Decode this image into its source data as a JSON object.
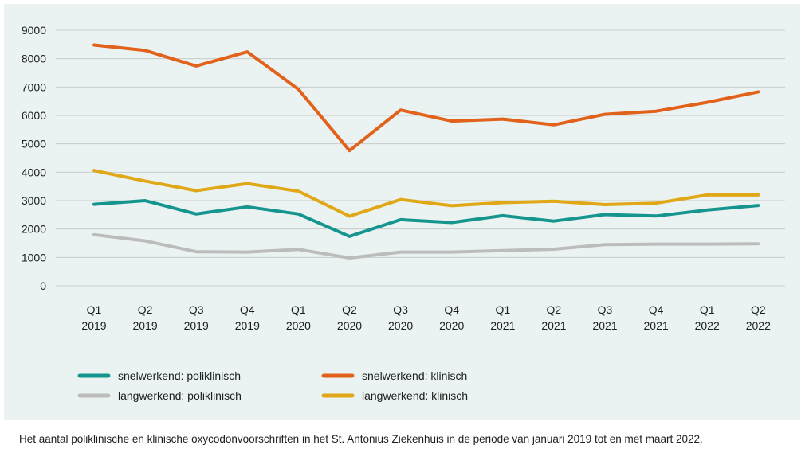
{
  "caption": "Het aantal poliklinische en klinische oxycodonvoorschriften in het St. Antonius Ziekenhuis in de periode van januari 2019 tot en met maart 2022.",
  "chart_data": {
    "type": "line",
    "categories": [
      [
        "Q1",
        "2019"
      ],
      [
        "Q2",
        "2019"
      ],
      [
        "Q3",
        "2019"
      ],
      [
        "Q4",
        "2019"
      ],
      [
        "Q1",
        "2020"
      ],
      [
        "Q2",
        "2020"
      ],
      [
        "Q3",
        "2020"
      ],
      [
        "Q4",
        "2020"
      ],
      [
        "Q1",
        "2021"
      ],
      [
        "Q2",
        "2021"
      ],
      [
        "Q3",
        "2021"
      ],
      [
        "Q4",
        "2021"
      ],
      [
        "Q1",
        "2022"
      ],
      [
        "Q2",
        "2022"
      ]
    ],
    "ylim": [
      0,
      9000
    ],
    "yticks": [
      0,
      1000,
      2000,
      3000,
      4000,
      5000,
      6000,
      7000,
      8000,
      9000
    ],
    "grid": true,
    "legend_position": "bottom",
    "series": [
      {
        "name": "snelwerkend: poliklinisch",
        "color": "#16958f",
        "values": [
          2870,
          3000,
          2530,
          2780,
          2530,
          1740,
          2330,
          2230,
          2470,
          2280,
          2510,
          2460,
          2670,
          2830
        ]
      },
      {
        "name": "snelwerkend: klinisch",
        "color": "#e2621b",
        "values": [
          8480,
          8290,
          7740,
          8240,
          6920,
          4760,
          6190,
          5800,
          5870,
          5670,
          6040,
          6150,
          6460,
          6830
        ]
      },
      {
        "name": "langwerkend: poliklinisch",
        "color": "#bcbcbc",
        "values": [
          1800,
          1580,
          1200,
          1190,
          1280,
          980,
          1190,
          1190,
          1240,
          1290,
          1450,
          1470,
          1470,
          1480
        ]
      },
      {
        "name": "langwerkend: klinisch",
        "color": "#e0a716",
        "values": [
          4060,
          3690,
          3350,
          3600,
          3330,
          2450,
          3040,
          2820,
          2930,
          2980,
          2860,
          2910,
          3200,
          3200
        ]
      }
    ]
  }
}
